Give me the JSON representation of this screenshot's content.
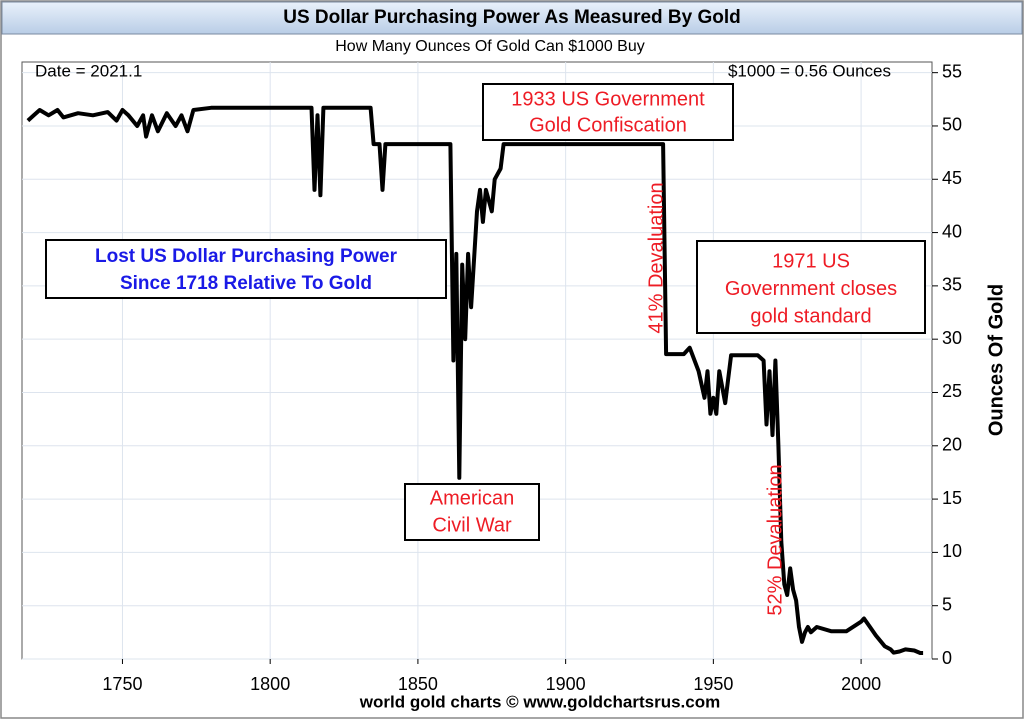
{
  "chart_data": {
    "type": "line",
    "title": "US Dollar Purchasing Power As Measured By Gold",
    "subtitle": "How Many Ounces Of Gold Can $1000 Buy",
    "y_label": "Ounces Of Gold",
    "footer": "world gold charts © www.goldchartsrus.com",
    "date_note": "Date = 2021.1",
    "value_note": "$1000 = 0.56 Ounces",
    "color": "#000000",
    "grid": true,
    "xlim": [
      1716,
      2024
    ],
    "xticks": [
      1750,
      1800,
      1850,
      1900,
      1950,
      2000
    ],
    "ylim": [
      0,
      56
    ],
    "yticks": [
      0,
      5,
      10,
      15,
      20,
      25,
      30,
      35,
      40,
      45,
      50,
      55
    ],
    "x": [
      1718,
      1720,
      1722,
      1725,
      1728,
      1730,
      1735,
      1740,
      1745,
      1748,
      1750,
      1752,
      1755,
      1757,
      1758,
      1760,
      1762,
      1765,
      1768,
      1770,
      1772,
      1774,
      1780,
      1790,
      1800,
      1814,
      1815,
      1816,
      1817,
      1818,
      1830,
      1834,
      1835,
      1837,
      1838,
      1839,
      1850,
      1861,
      1862,
      1863,
      1864,
      1865,
      1866,
      1867,
      1868,
      1870,
      1871,
      1872,
      1873,
      1875,
      1876,
      1878,
      1879,
      1900,
      1933,
      1934,
      1940,
      1942,
      1945,
      1947,
      1948,
      1949,
      1950,
      1951,
      1952,
      1954,
      1956,
      1960,
      1965,
      1967,
      1968,
      1969,
      1970,
      1971,
      1972,
      1973,
      1974,
      1975,
      1976,
      1977,
      1978,
      1979,
      1980,
      1981,
      1982,
      1983,
      1985,
      1990,
      1995,
      2000,
      2001,
      2003,
      2005,
      2008,
      2010,
      2011,
      2013,
      2015,
      2018,
      2020,
      2021
    ],
    "values": [
      50.5,
      51,
      51.5,
      51,
      51.5,
      50.8,
      51.2,
      51,
      51.3,
      50.5,
      51.5,
      51,
      50,
      51,
      49,
      51,
      49.5,
      51.2,
      50,
      51,
      49.5,
      51.5,
      51.7,
      51.7,
      51.7,
      51.7,
      44,
      51,
      43.5,
      51.7,
      51.7,
      51.7,
      48.3,
      48.3,
      44,
      48.3,
      48.3,
      48.3,
      28,
      38,
      17,
      37,
      30,
      38,
      33,
      42,
      44,
      41,
      44,
      42,
      45,
      46,
      48.3,
      48.3,
      48.3,
      28.6,
      28.6,
      29.2,
      27,
      24.5,
      27,
      23,
      24.5,
      23,
      27,
      24,
      28.5,
      28.5,
      28.5,
      28,
      22,
      27,
      21,
      28,
      20,
      11,
      7,
      6,
      8.5,
      6.5,
      5.5,
      3,
      1.6,
      2.5,
      3,
      2.5,
      3,
      2.6,
      2.6,
      3.5,
      3.8,
      3,
      2.2,
      1.2,
      0.9,
      0.6,
      0.7,
      0.9,
      0.8,
      0.56,
      0.56
    ],
    "annotations": [
      {
        "lines": [
          "1933 US Government",
          "Gold Confiscation"
        ],
        "color": "#ee1c25"
      },
      {
        "lines": [
          "Lost US Dollar Purchasing Power",
          "Since 1718 Relative To Gold"
        ],
        "color": "#1a1ae6"
      },
      {
        "lines": [
          "American",
          "Civil War"
        ],
        "color": "#ee1c25"
      },
      {
        "lines": [
          "1971 US",
          "Government closes",
          "gold standard"
        ],
        "color": "#ee1c25"
      },
      {
        "lines": [
          "41% Devaluation"
        ],
        "color": "#ee1c25"
      },
      {
        "lines": [
          "52% Devaluation"
        ],
        "color": "#ee1c25"
      }
    ]
  }
}
